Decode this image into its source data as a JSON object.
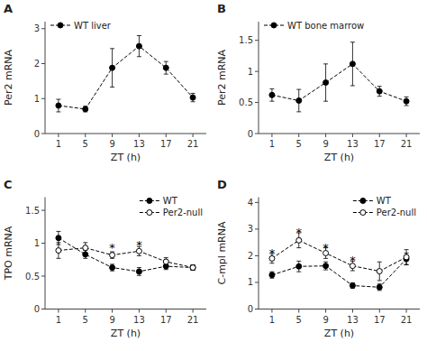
{
  "chart_data": [
    {
      "type": "line",
      "title": "A",
      "x_label": "ZT (h)",
      "y_label": "Per2 mRNA",
      "x": [
        1,
        5,
        9,
        13,
        17,
        21
      ],
      "series": [
        {
          "name": "WT liver",
          "color": "black",
          "marker": "circle",
          "line_style": "dashed",
          "values": [
            0.8,
            0.7,
            1.88,
            2.5,
            1.88,
            1.03
          ],
          "yerr": [
            0.18,
            0.08,
            0.55,
            0.3,
            0.18,
            0.12
          ]
        }
      ],
      "xlim": [
        -1,
        23
      ],
      "xticks": [
        1,
        5,
        9,
        13,
        17,
        21
      ],
      "ylim": [
        0,
        3.2
      ],
      "yticks": [
        0,
        1,
        2,
        3
      ],
      "legend": "upper left",
      "grid": false
    },
    {
      "type": "line",
      "title": "B",
      "x_label": "ZT (h)",
      "y_label": "Per2 mRNA",
      "x": [
        1,
        5,
        9,
        13,
        17,
        21
      ],
      "series": [
        {
          "name": "WT bone marrow",
          "color": "black",
          "marker": "circle",
          "line_style": "dashed",
          "values": [
            0.62,
            0.53,
            0.82,
            1.12,
            0.68,
            0.52
          ],
          "yerr": [
            0.1,
            0.18,
            0.3,
            0.35,
            0.08,
            0.07
          ]
        }
      ],
      "xlim": [
        -1,
        23
      ],
      "xticks": [
        1,
        5,
        9,
        13,
        17,
        21
      ],
      "ylim": [
        0,
        1.8
      ],
      "yticks": [
        0,
        0.5,
        1,
        1.5
      ],
      "legend": "upper left",
      "grid": false
    },
    {
      "type": "line",
      "title": "C",
      "x_label": "ZT (h)",
      "y_label": "TPO mRNA",
      "x": [
        1,
        5,
        9,
        13,
        17,
        21
      ],
      "series": [
        {
          "name": "WT",
          "color": "black",
          "marker": "circle",
          "line_style": "dashed",
          "values": [
            1.08,
            0.83,
            0.63,
            0.57,
            0.65,
            0.63
          ],
          "yerr": [
            0.1,
            0.06,
            0.05,
            0.06,
            0.05,
            0.04
          ]
        },
        {
          "name": "Per2-null",
          "color": "black",
          "marker": "open-circle",
          "line_style": "dashed",
          "values": [
            0.89,
            0.93,
            0.82,
            0.88,
            0.72,
            0.63
          ],
          "yerr": [
            0.12,
            0.08,
            0.05,
            0.07,
            0.06,
            0.04
          ]
        }
      ],
      "annotations": [
        {
          "x": 9,
          "y": 0.96,
          "text": "*"
        },
        {
          "x": 13,
          "y": 1.01,
          "text": "*"
        }
      ],
      "xlim": [
        -1,
        23
      ],
      "xticks": [
        1,
        5,
        9,
        13,
        17,
        21
      ],
      "ylim": [
        0,
        1.7
      ],
      "yticks": [
        0,
        0.5,
        1,
        1.5
      ],
      "legend": "upper right",
      "grid": false
    },
    {
      "type": "line",
      "title": "D",
      "x_label": "ZT (h)",
      "y_label": "C-mpl mRNA",
      "x": [
        1,
        5,
        9,
        13,
        17,
        21
      ],
      "series": [
        {
          "name": "WT",
          "color": "black",
          "marker": "circle",
          "line_style": "dashed",
          "values": [
            1.28,
            1.6,
            1.62,
            0.88,
            0.82,
            1.88
          ],
          "yerr": [
            0.12,
            0.2,
            0.15,
            0.1,
            0.12,
            0.22
          ]
        },
        {
          "name": "Per2-null",
          "color": "black",
          "marker": "open-circle",
          "line_style": "dashed",
          "values": [
            1.9,
            2.58,
            2.1,
            1.62,
            1.42,
            1.95
          ],
          "yerr": [
            0.18,
            0.28,
            0.2,
            0.18,
            0.35,
            0.28
          ]
        }
      ],
      "annotations": [
        {
          "x": 1,
          "y": 2.18,
          "text": "*"
        },
        {
          "x": 5,
          "y": 2.95,
          "text": "*"
        },
        {
          "x": 9,
          "y": 2.38,
          "text": "*"
        },
        {
          "x": 13,
          "y": 1.9,
          "text": "*"
        }
      ],
      "xlim": [
        -1,
        23
      ],
      "xticks": [
        1,
        5,
        9,
        13,
        17,
        21
      ],
      "ylim": [
        0,
        4.2
      ],
      "yticks": [
        0,
        1,
        2,
        3,
        4
      ],
      "legend": "upper right",
      "grid": false
    }
  ]
}
